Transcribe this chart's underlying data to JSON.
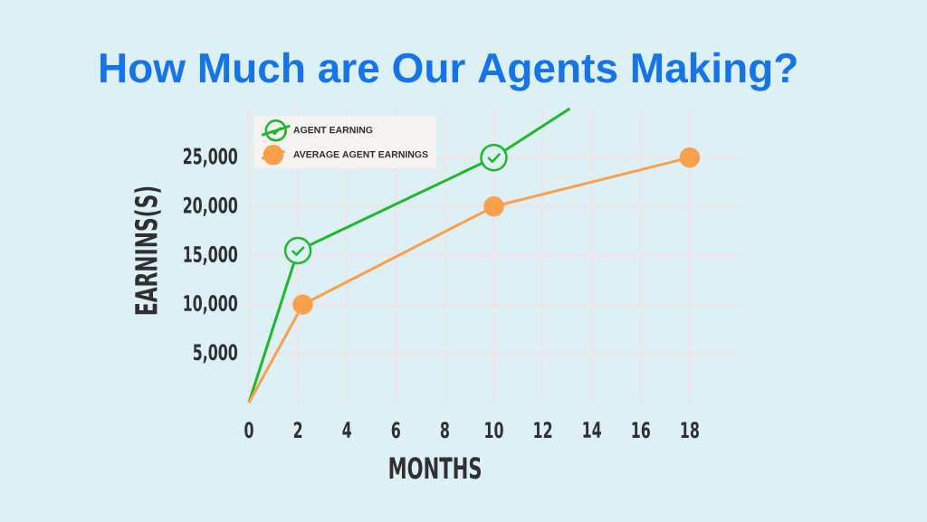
{
  "chart_data": {
    "type": "line",
    "title": "How Much are Our Agents Making?",
    "xlabel": "MONTHS",
    "ylabel": "EARNINS(S)",
    "xlim": [
      0,
      20
    ],
    "ylim": [
      0,
      30000
    ],
    "xticks": [
      0,
      2,
      4,
      6,
      8,
      10,
      12,
      14,
      16,
      18
    ],
    "yticks": [
      {
        "value": 5000,
        "label": "5,000"
      },
      {
        "value": 10000,
        "label": "10,000"
      },
      {
        "value": 15000,
        "label": "15,000"
      },
      {
        "value": 20000,
        "label": "20,000"
      },
      {
        "value": 25000,
        "label": "25,000"
      }
    ],
    "grid": true,
    "legend": "top left",
    "marker": "circle",
    "series": [
      {
        "name": "AGENT EARNING",
        "color": "#1fb82c",
        "x": [
          0,
          2,
          10,
          13.1
        ],
        "values": [
          0,
          15500,
          25000,
          30000
        ]
      },
      {
        "name": "AVERAGE AGENT EARNINGS",
        "color": "#f8a04b",
        "x": [
          0,
          2.2,
          10,
          18
        ],
        "values": [
          0,
          10000,
          20000,
          25000
        ]
      }
    ]
  }
}
